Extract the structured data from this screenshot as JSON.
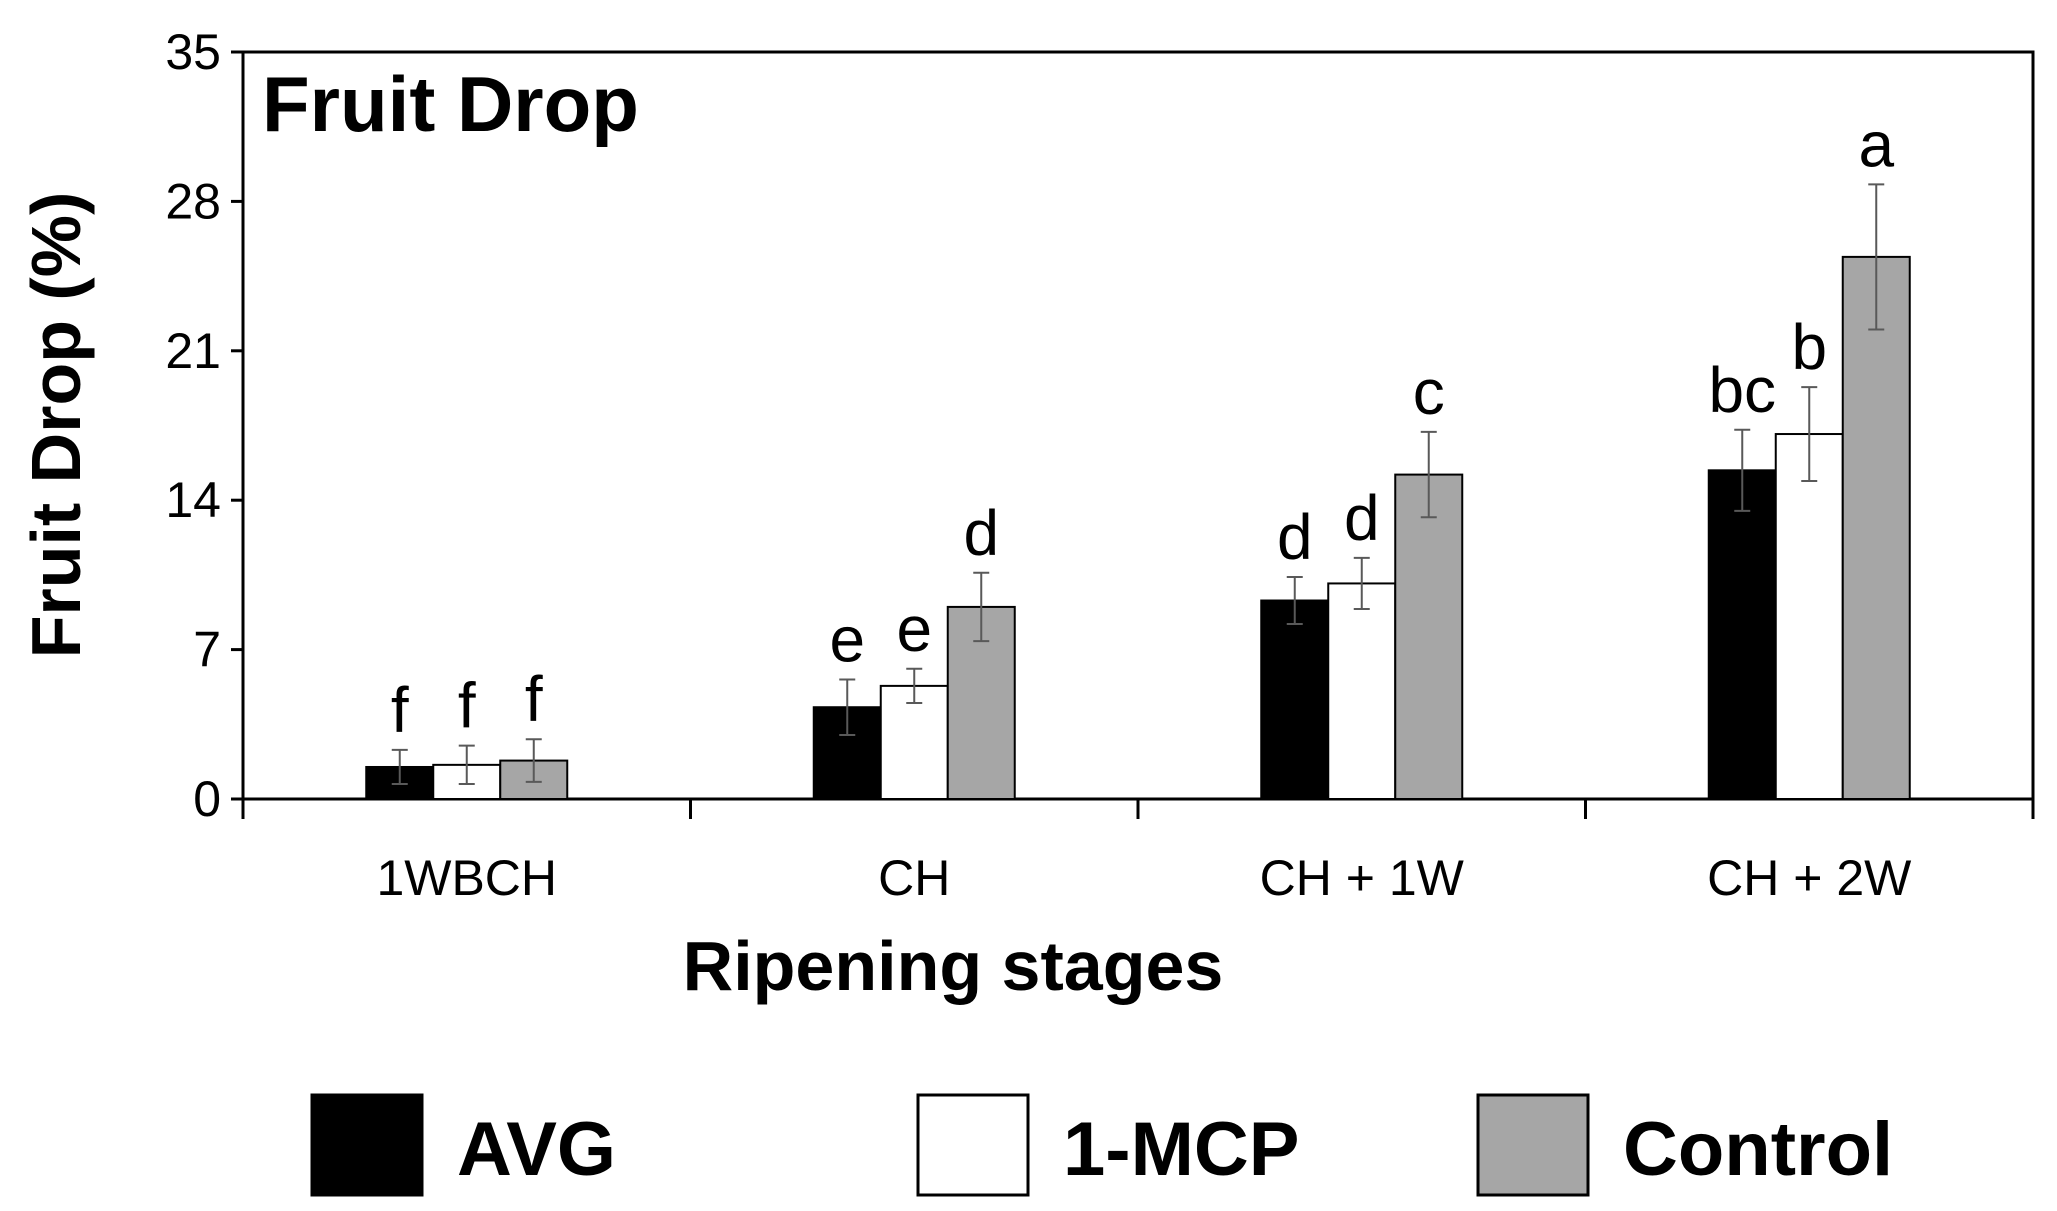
{
  "chart_data": {
    "type": "bar",
    "title": "Fruit Drop",
    "xlabel": "Ripening stages",
    "ylabel": "Fruit Drop (%)",
    "ylim": [
      0,
      35
    ],
    "yticks": [
      0,
      7,
      14,
      21,
      28,
      35
    ],
    "ytick_labels": [
      "0",
      "7",
      "14",
      "21",
      "28",
      "35"
    ],
    "grid": false,
    "legend_position": "bottom",
    "categories": [
      "1WBCH",
      "CH",
      "CH + 1W",
      "CH + 2W"
    ],
    "series": [
      {
        "name": "AVG",
        "color": "#000000",
        "values": [
          1.5,
          4.3,
          9.3,
          15.4
        ],
        "errors": [
          0.8,
          1.3,
          1.1,
          1.9
        ],
        "letters": [
          "f",
          "e",
          "d",
          "bc"
        ]
      },
      {
        "name": "1-MCP",
        "color": "#ffffff",
        "values": [
          1.6,
          5.3,
          10.1,
          17.1
        ],
        "errors": [
          0.9,
          0.8,
          1.2,
          2.2
        ],
        "letters": [
          "f",
          "e",
          "d",
          "b"
        ]
      },
      {
        "name": "Control",
        "color": "#a6a6a6",
        "values": [
          1.8,
          9.0,
          15.2,
          25.4
        ],
        "errors": [
          1.0,
          1.6,
          2.0,
          3.4
        ],
        "letters": [
          "f",
          "d",
          "c",
          "a"
        ]
      }
    ]
  }
}
